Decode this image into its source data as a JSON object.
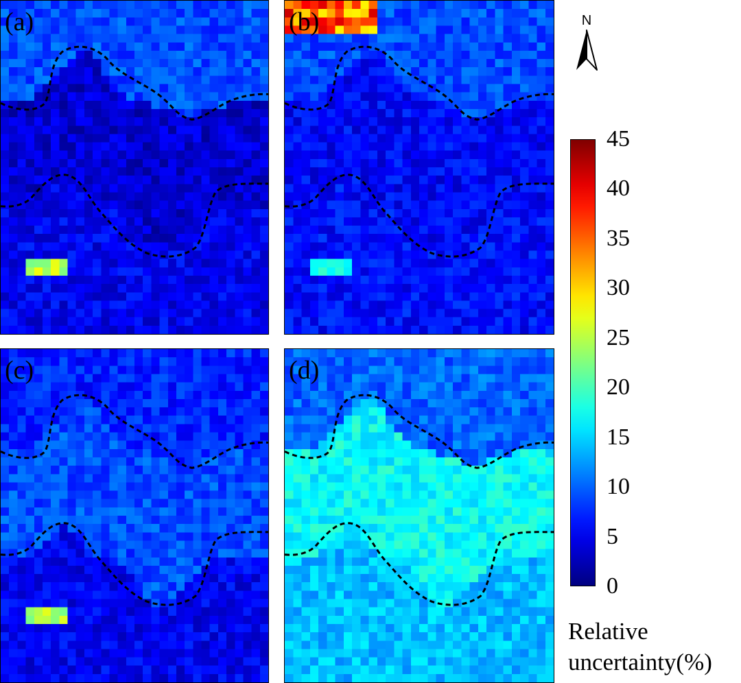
{
  "panels": [
    {
      "id": "a",
      "label": "(a)"
    },
    {
      "id": "b",
      "label": "(b)"
    },
    {
      "id": "c",
      "label": "(c)"
    },
    {
      "id": "d",
      "label": "(d)"
    }
  ],
  "north_label": "N",
  "legend": {
    "title_line1": "Relative",
    "title_line2": "uncertainty(%)",
    "ticks": [
      "45",
      "40",
      "35",
      "30",
      "25",
      "20",
      "15",
      "10",
      "5",
      "0"
    ],
    "min": 0,
    "max": 45,
    "colormap": "jet",
    "boundary_color": "#000000"
  }
}
